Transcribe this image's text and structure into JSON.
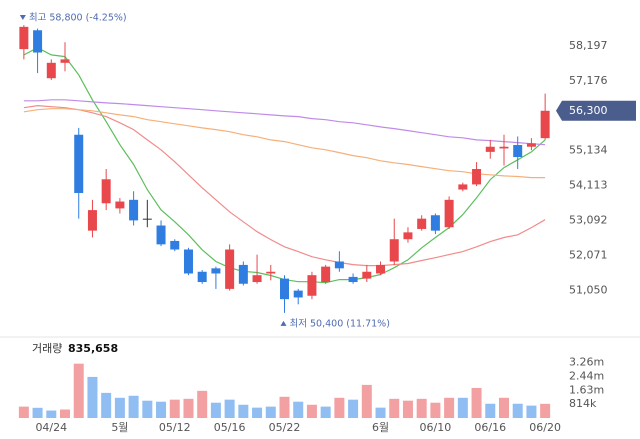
{
  "chart_data": [
    {
      "type": "candlestick",
      "categories": [
        null,
        null,
        "04/24",
        null,
        null,
        null,
        null,
        "5월",
        null,
        null,
        null,
        "05/12",
        null,
        null,
        null,
        "05/16",
        null,
        null,
        null,
        "05/22",
        null,
        null,
        null,
        null,
        null,
        null,
        "6월",
        null,
        null,
        null,
        "06/10",
        null,
        null,
        null,
        "06/16",
        null,
        null,
        null,
        "06/20"
      ],
      "open": [
        58100,
        58650,
        57250,
        57700,
        55600,
        52800,
        53600,
        53450,
        53700,
        53150,
        52950,
        52500,
        52250,
        51600,
        51700,
        51100,
        51800,
        51300,
        51550,
        51400,
        51050,
        50900,
        51300,
        51900,
        51450,
        51400,
        51550,
        51900,
        52550,
        52850,
        53250,
        52900,
        54000,
        54150,
        55100,
        55200,
        55300,
        55250,
        55500
      ],
      "high": [
        58800,
        58700,
        57800,
        58300,
        55800,
        53700,
        54600,
        53750,
        53950,
        53700,
        53100,
        52550,
        52300,
        51650,
        51750,
        52400,
        51900,
        52100,
        51800,
        51500,
        51100,
        51600,
        51800,
        52200,
        51550,
        51800,
        51900,
        53150,
        52900,
        53250,
        53300,
        53800,
        54200,
        54800,
        55450,
        55600,
        55550,
        55500,
        56800
      ],
      "low": [
        57800,
        57400,
        57200,
        57450,
        53150,
        52600,
        53400,
        53300,
        52950,
        52900,
        52350,
        52200,
        51500,
        51250,
        51100,
        51050,
        51200,
        51250,
        51350,
        50400,
        50650,
        50800,
        51250,
        51600,
        51250,
        51300,
        51500,
        51800,
        52450,
        52800,
        52700,
        52850,
        53950,
        54100,
        54900,
        54700,
        54600,
        55150,
        55450
      ],
      "close": [
        58750,
        58000,
        57700,
        57800,
        53900,
        53400,
        54300,
        53650,
        53100,
        53150,
        52400,
        52250,
        51550,
        51300,
        51550,
        52250,
        51250,
        51500,
        51600,
        50800,
        50850,
        51500,
        51750,
        51700,
        51300,
        51600,
        51800,
        52550,
        52750,
        53150,
        52800,
        53700,
        54150,
        54600,
        55250,
        55250,
        54950,
        55350,
        56300
      ],
      "up_color": "#e8474c",
      "down_color": "#2f7de1",
      "flat_color": "#333333",
      "lines": [
        {
          "color": "#5cbf5c",
          "values": [
            57930,
            58140,
            57930,
            57880,
            57350,
            56620,
            55980,
            55310,
            54730,
            54000,
            53410,
            53060,
            52680,
            52240,
            51900,
            51720,
            51610,
            51580,
            51490,
            51370,
            51310,
            51310,
            51280,
            51370,
            51370,
            51430,
            51520,
            51720,
            51950,
            52300,
            52600,
            52890,
            53270,
            53760,
            54290,
            54640,
            54870,
            55100,
            55450
          ]
        },
        {
          "color": "#f28b8b",
          "values": [
            56390,
            56450,
            56420,
            56390,
            56330,
            56240,
            56130,
            55950,
            55750,
            55450,
            55160,
            54810,
            54430,
            54050,
            53700,
            53350,
            53060,
            52770,
            52540,
            52330,
            52190,
            52040,
            51950,
            51870,
            51810,
            51780,
            51780,
            51810,
            51840,
            51930,
            52010,
            52100,
            52190,
            52330,
            52480,
            52600,
            52680,
            52890,
            53120
          ]
        },
        {
          "color": "#f5b07a",
          "values": [
            56270,
            56330,
            56360,
            56360,
            56330,
            56300,
            56240,
            56180,
            56130,
            56040,
            55980,
            55920,
            55860,
            55800,
            55750,
            55690,
            55600,
            55540,
            55450,
            55400,
            55310,
            55220,
            55160,
            55080,
            54990,
            54930,
            54840,
            54780,
            54730,
            54670,
            54610,
            54550,
            54520,
            54460,
            54430,
            54400,
            54380,
            54350,
            54350
          ]
        },
        {
          "color": "#c08be8",
          "values": [
            56590,
            56590,
            56620,
            56620,
            56590,
            56560,
            56530,
            56510,
            56480,
            56450,
            56420,
            56390,
            56360,
            56330,
            56300,
            56270,
            56240,
            56210,
            56180,
            56150,
            56130,
            56070,
            56040,
            55980,
            55950,
            55890,
            55830,
            55780,
            55720,
            55660,
            55600,
            55540,
            55510,
            55450,
            55430,
            55400,
            55370,
            55340,
            55310
          ]
        }
      ],
      "ylim": [
        49900,
        59300
      ],
      "yticks": [
        {
          "value": 51050,
          "label": "51,050"
        },
        {
          "value": 52071,
          "label": "52,071"
        },
        {
          "value": 53092,
          "label": "53,092"
        },
        {
          "value": 54113,
          "label": "54,113"
        },
        {
          "value": 55134,
          "label": "55,134"
        },
        {
          "value": 57176,
          "label": "57,176"
        },
        {
          "value": 58197,
          "label": "58,197"
        }
      ],
      "current_label": "56,300",
      "current_color": "#4a5d8c",
      "high_annotation": "최고 58,800 (-4.25%)",
      "low_annotation": "최저 50,400 (11.71%)"
    },
    {
      "type": "bar",
      "title": "거래량",
      "values": [
        670000,
        600000,
        440000,
        500000,
        3200000,
        2420000,
        1480000,
        1190000,
        1310000,
        1020000,
        960000,
        1080000,
        1130000,
        1600000,
        900000,
        1080000,
        780000,
        610000,
        670000,
        1250000,
        960000,
        780000,
        670000,
        1190000,
        1080000,
        1950000,
        610000,
        1130000,
        1020000,
        1130000,
        900000,
        1190000,
        1190000,
        1770000,
        840000,
        1190000,
        840000,
        730000,
        835658
      ],
      "value_labels": [
        null,
        null,
        null,
        null,
        null,
        null,
        null,
        null,
        null,
        null,
        null,
        null,
        null,
        null,
        null,
        null,
        null,
        null,
        null,
        null,
        null,
        null,
        null,
        null,
        null,
        null,
        null,
        null,
        null,
        null,
        null,
        null,
        null,
        null,
        null,
        null,
        null,
        null,
        "835,658"
      ],
      "colors": [
        "#f2a0a2",
        "#90bdf2",
        "#90bdf2",
        "#f2a0a2",
        "#f2a0a2",
        "#90bdf2",
        "#90bdf2",
        "#90bdf2",
        "#90bdf2",
        "#90bdf2",
        "#90bdf2",
        "#f2a0a2",
        "#f2a0a2",
        "#f2a0a2",
        "#90bdf2",
        "#90bdf2",
        "#90bdf2",
        "#90bdf2",
        "#90bdf2",
        "#f2a0a2",
        "#90bdf2",
        "#f2a0a2",
        "#90bdf2",
        "#f2a0a2",
        "#90bdf2",
        "#f2a0a2",
        "#90bdf2",
        "#f2a0a2",
        "#f2a0a2",
        "#f2a0a2",
        "#f2a0a2",
        "#f2a0a2",
        "#90bdf2",
        "#f2a0a2",
        "#90bdf2",
        "#f2a0a2",
        "#90bdf2",
        "#90bdf2",
        "#f2a0a2"
      ],
      "ylim": [
        0,
        4300000
      ],
      "yticks": [
        {
          "value": 814000,
          "label": "814k"
        },
        {
          "value": 1630000,
          "label": "1.63m"
        },
        {
          "value": 2440000,
          "label": "2.44m"
        },
        {
          "value": 3260000,
          "label": "3.26m"
        }
      ]
    }
  ]
}
